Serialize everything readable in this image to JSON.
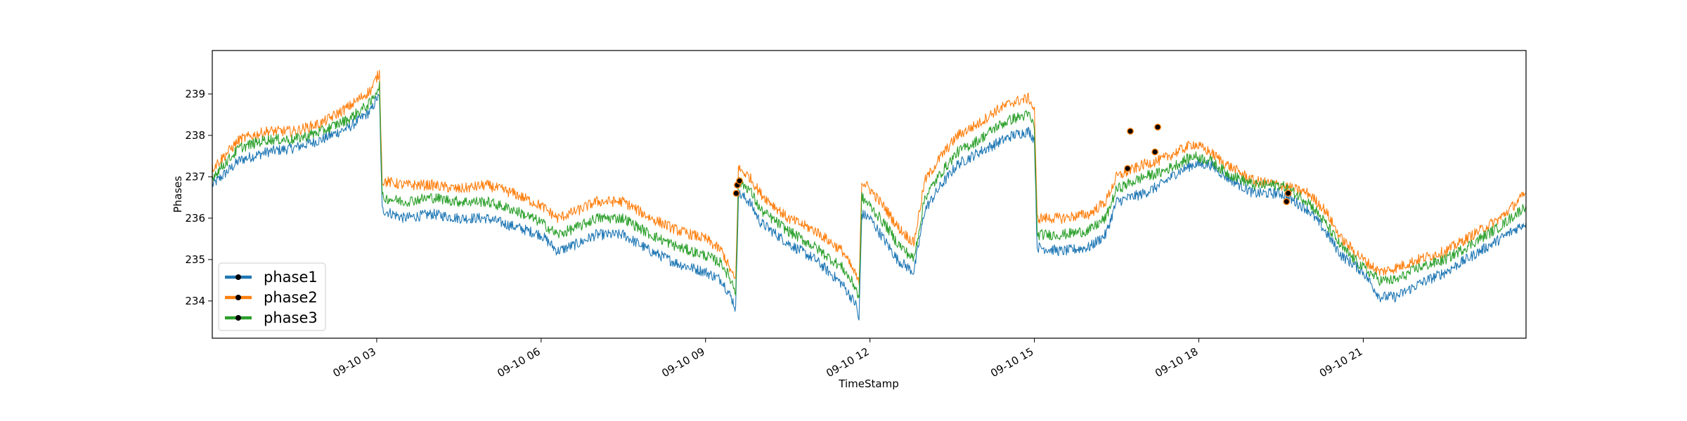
{
  "chart_data": {
    "type": "line",
    "title": "",
    "xlabel": "TimeStamp",
    "ylabel": "Phases",
    "xlim_hours": [
      0.0,
      23.97
    ],
    "ylim": [
      233.1,
      240.05
    ],
    "grid": false,
    "legend_position": "bottom-left",
    "x_ticks": [
      {
        "hour": 3,
        "label": "09-10 03"
      },
      {
        "hour": 6,
        "label": "09-10 06"
      },
      {
        "hour": 9,
        "label": "09-10 09"
      },
      {
        "hour": 12,
        "label": "09-10 12"
      },
      {
        "hour": 15,
        "label": "09-10 15"
      },
      {
        "hour": 18,
        "label": "09-10 18"
      },
      {
        "hour": 21,
        "label": "09-10 21"
      }
    ],
    "y_ticks": [
      {
        "value": 234,
        "label": "234"
      },
      {
        "value": 235,
        "label": "235"
      },
      {
        "value": 236,
        "label": "236"
      },
      {
        "value": 237,
        "label": "237"
      },
      {
        "value": 238,
        "label": "238"
      },
      {
        "value": 239,
        "label": "239"
      }
    ],
    "series": [
      {
        "name": "phase1",
        "color": "#1f77b4",
        "points": [
          [
            0.0,
            236.8
          ],
          [
            0.5,
            237.4
          ],
          [
            1.0,
            237.6
          ],
          [
            1.5,
            237.7
          ],
          [
            2.0,
            237.9
          ],
          [
            2.5,
            238.2
          ],
          [
            2.9,
            238.6
          ],
          [
            3.0,
            238.9
          ],
          [
            3.05,
            238.9
          ],
          [
            3.1,
            236.2
          ],
          [
            3.5,
            236.0
          ],
          [
            4.0,
            236.1
          ],
          [
            4.5,
            236.0
          ],
          [
            5.0,
            236.0
          ],
          [
            5.5,
            235.8
          ],
          [
            6.0,
            235.6
          ],
          [
            6.3,
            235.2
          ],
          [
            6.7,
            235.4
          ],
          [
            7.0,
            235.6
          ],
          [
            7.5,
            235.6
          ],
          [
            8.0,
            235.2
          ],
          [
            8.5,
            234.9
          ],
          [
            9.0,
            234.7
          ],
          [
            9.3,
            234.5
          ],
          [
            9.5,
            234.0
          ],
          [
            9.55,
            233.8
          ],
          [
            9.6,
            236.6
          ],
          [
            9.8,
            236.4
          ],
          [
            10.0,
            235.9
          ],
          [
            10.5,
            235.4
          ],
          [
            11.0,
            235.0
          ],
          [
            11.5,
            234.4
          ],
          [
            11.75,
            233.9
          ],
          [
            11.8,
            233.5
          ],
          [
            11.85,
            236.1
          ],
          [
            12.0,
            236.0
          ],
          [
            12.3,
            235.4
          ],
          [
            12.5,
            235.0
          ],
          [
            12.8,
            234.7
          ],
          [
            13.0,
            236.2
          ],
          [
            13.3,
            236.8
          ],
          [
            13.6,
            237.3
          ],
          [
            14.0,
            237.6
          ],
          [
            14.3,
            237.8
          ],
          [
            14.6,
            238.0
          ],
          [
            14.9,
            238.1
          ],
          [
            15.0,
            237.9
          ],
          [
            15.05,
            235.3
          ],
          [
            15.5,
            235.2
          ],
          [
            16.0,
            235.3
          ],
          [
            16.3,
            235.6
          ],
          [
            16.5,
            236.4
          ],
          [
            17.0,
            236.6
          ],
          [
            17.3,
            236.8
          ],
          [
            17.6,
            237.1
          ],
          [
            17.9,
            237.3
          ],
          [
            18.2,
            237.3
          ],
          [
            18.5,
            237.0
          ],
          [
            19.0,
            236.6
          ],
          [
            19.5,
            236.6
          ],
          [
            20.0,
            236.2
          ],
          [
            20.3,
            235.7
          ],
          [
            20.6,
            235.1
          ],
          [
            21.0,
            234.7
          ],
          [
            21.3,
            234.1
          ],
          [
            21.6,
            234.1
          ],
          [
            22.0,
            234.4
          ],
          [
            22.5,
            234.7
          ],
          [
            23.0,
            235.1
          ],
          [
            23.5,
            235.5
          ],
          [
            23.97,
            235.9
          ]
        ]
      },
      {
        "name": "phase2",
        "color": "#ff7f0e",
        "points": [
          [
            0.0,
            237.2
          ],
          [
            0.5,
            237.9
          ],
          [
            1.0,
            238.1
          ],
          [
            1.5,
            238.1
          ],
          [
            2.0,
            238.3
          ],
          [
            2.5,
            238.7
          ],
          [
            2.9,
            239.1
          ],
          [
            3.0,
            239.4
          ],
          [
            3.05,
            239.5
          ],
          [
            3.1,
            236.9
          ],
          [
            3.5,
            236.8
          ],
          [
            4.0,
            236.8
          ],
          [
            4.5,
            236.7
          ],
          [
            5.0,
            236.8
          ],
          [
            5.5,
            236.6
          ],
          [
            6.0,
            236.3
          ],
          [
            6.3,
            236.0
          ],
          [
            6.7,
            236.2
          ],
          [
            7.0,
            236.4
          ],
          [
            7.5,
            236.4
          ],
          [
            8.0,
            236.0
          ],
          [
            8.5,
            235.7
          ],
          [
            9.0,
            235.5
          ],
          [
            9.3,
            235.2
          ],
          [
            9.5,
            234.6
          ],
          [
            9.55,
            234.5
          ],
          [
            9.6,
            237.2
          ],
          [
            9.8,
            237.0
          ],
          [
            10.0,
            236.6
          ],
          [
            10.5,
            236.0
          ],
          [
            11.0,
            235.7
          ],
          [
            11.5,
            235.2
          ],
          [
            11.75,
            234.6
          ],
          [
            11.8,
            234.4
          ],
          [
            11.85,
            236.9
          ],
          [
            12.0,
            236.7
          ],
          [
            12.3,
            236.2
          ],
          [
            12.5,
            235.8
          ],
          [
            12.8,
            235.4
          ],
          [
            13.0,
            236.9
          ],
          [
            13.3,
            237.5
          ],
          [
            13.6,
            238.0
          ],
          [
            14.0,
            238.3
          ],
          [
            14.3,
            238.6
          ],
          [
            14.6,
            238.8
          ],
          [
            14.9,
            238.9
          ],
          [
            15.0,
            238.6
          ],
          [
            15.05,
            236.0
          ],
          [
            15.5,
            236.0
          ],
          [
            16.0,
            236.1
          ],
          [
            16.3,
            236.4
          ],
          [
            16.5,
            237.0
          ],
          [
            17.0,
            237.3
          ],
          [
            17.3,
            237.4
          ],
          [
            17.6,
            237.6
          ],
          [
            17.9,
            237.8
          ],
          [
            18.2,
            237.6
          ],
          [
            18.5,
            237.3
          ],
          [
            19.0,
            236.9
          ],
          [
            19.5,
            236.8
          ],
          [
            20.0,
            236.6
          ],
          [
            20.3,
            236.2
          ],
          [
            20.6,
            235.5
          ],
          [
            21.0,
            235.0
          ],
          [
            21.3,
            234.7
          ],
          [
            21.6,
            234.8
          ],
          [
            22.0,
            235.0
          ],
          [
            22.5,
            235.2
          ],
          [
            23.0,
            235.6
          ],
          [
            23.5,
            236.0
          ],
          [
            23.97,
            236.6
          ]
        ]
      },
      {
        "name": "phase3",
        "color": "#2ca02c",
        "points": [
          [
            0.0,
            237.0
          ],
          [
            0.5,
            237.7
          ],
          [
            1.0,
            237.9
          ],
          [
            1.5,
            237.9
          ],
          [
            2.0,
            238.1
          ],
          [
            2.5,
            238.4
          ],
          [
            2.9,
            238.8
          ],
          [
            3.0,
            239.1
          ],
          [
            3.05,
            239.2
          ],
          [
            3.1,
            236.5
          ],
          [
            3.5,
            236.4
          ],
          [
            4.0,
            236.5
          ],
          [
            4.5,
            236.4
          ],
          [
            5.0,
            236.4
          ],
          [
            5.5,
            236.2
          ],
          [
            6.0,
            235.9
          ],
          [
            6.3,
            235.6
          ],
          [
            6.7,
            235.8
          ],
          [
            7.0,
            236.0
          ],
          [
            7.5,
            236.0
          ],
          [
            8.0,
            235.6
          ],
          [
            8.5,
            235.3
          ],
          [
            9.0,
            235.1
          ],
          [
            9.3,
            234.9
          ],
          [
            9.5,
            234.4
          ],
          [
            9.55,
            234.2
          ],
          [
            9.6,
            236.9
          ],
          [
            9.8,
            236.7
          ],
          [
            10.0,
            236.2
          ],
          [
            10.5,
            235.7
          ],
          [
            11.0,
            235.3
          ],
          [
            11.5,
            234.8
          ],
          [
            11.75,
            234.3
          ],
          [
            11.8,
            234.0
          ],
          [
            11.85,
            236.5
          ],
          [
            12.0,
            236.3
          ],
          [
            12.3,
            235.8
          ],
          [
            12.5,
            235.4
          ],
          [
            12.8,
            235.0
          ],
          [
            13.0,
            236.5
          ],
          [
            13.3,
            237.1
          ],
          [
            13.6,
            237.6
          ],
          [
            14.0,
            237.9
          ],
          [
            14.3,
            238.2
          ],
          [
            14.6,
            238.4
          ],
          [
            14.9,
            238.5
          ],
          [
            15.0,
            238.2
          ],
          [
            15.05,
            235.6
          ],
          [
            15.5,
            235.6
          ],
          [
            16.0,
            235.7
          ],
          [
            16.3,
            236.0
          ],
          [
            16.5,
            236.7
          ],
          [
            17.0,
            237.0
          ],
          [
            17.3,
            237.1
          ],
          [
            17.6,
            237.3
          ],
          [
            17.9,
            237.5
          ],
          [
            18.2,
            237.4
          ],
          [
            18.5,
            237.1
          ],
          [
            19.0,
            236.8
          ],
          [
            19.5,
            236.8
          ],
          [
            20.0,
            236.4
          ],
          [
            20.3,
            235.9
          ],
          [
            20.6,
            235.3
          ],
          [
            21.0,
            234.8
          ],
          [
            21.3,
            234.5
          ],
          [
            21.6,
            234.5
          ],
          [
            22.0,
            234.8
          ],
          [
            22.5,
            235.0
          ],
          [
            23.0,
            235.4
          ],
          [
            23.5,
            235.8
          ],
          [
            23.97,
            236.3
          ]
        ]
      }
    ],
    "markers": {
      "color": "#000000",
      "points": [
        [
          9.56,
          236.6
        ],
        [
          9.58,
          236.8
        ],
        [
          9.62,
          236.9
        ],
        [
          16.7,
          237.2
        ],
        [
          16.75,
          238.1
        ],
        [
          17.2,
          237.6
        ],
        [
          17.25,
          238.2
        ],
        [
          19.6,
          236.4
        ],
        [
          19.63,
          236.6
        ]
      ]
    }
  }
}
